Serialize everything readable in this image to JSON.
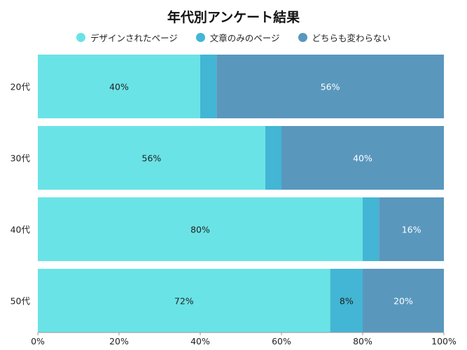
{
  "chart_data": {
    "type": "bar",
    "orientation": "horizontal",
    "stacked": true,
    "normalized": true,
    "title": "年代別アンケート結果",
    "categories": [
      "20代",
      "30代",
      "40代",
      "50代"
    ],
    "series": [
      {
        "name": "デザインされたページ",
        "values": [
          40,
          56,
          80,
          72
        ],
        "labels": [
          "40%",
          "56%",
          "80%",
          "72%"
        ],
        "color": "#6ae3e6"
      },
      {
        "name": "文章のみのページ",
        "values": [
          4,
          4,
          4,
          8
        ],
        "labels": [
          "",
          "",
          "",
          "8%"
        ],
        "color": "#42b6d4"
      },
      {
        "name": "どちらも変わらない",
        "values": [
          56,
          40,
          16,
          20
        ],
        "labels": [
          "56%",
          "40%",
          "16%",
          "20%"
        ],
        "color": "#5a97bd"
      }
    ],
    "xaxis": {
      "ticks": [
        "0%",
        "20%",
        "40%",
        "60%",
        "80%",
        "100%"
      ],
      "range": [
        0,
        100
      ]
    },
    "legend_position": "top",
    "grid": false
  }
}
